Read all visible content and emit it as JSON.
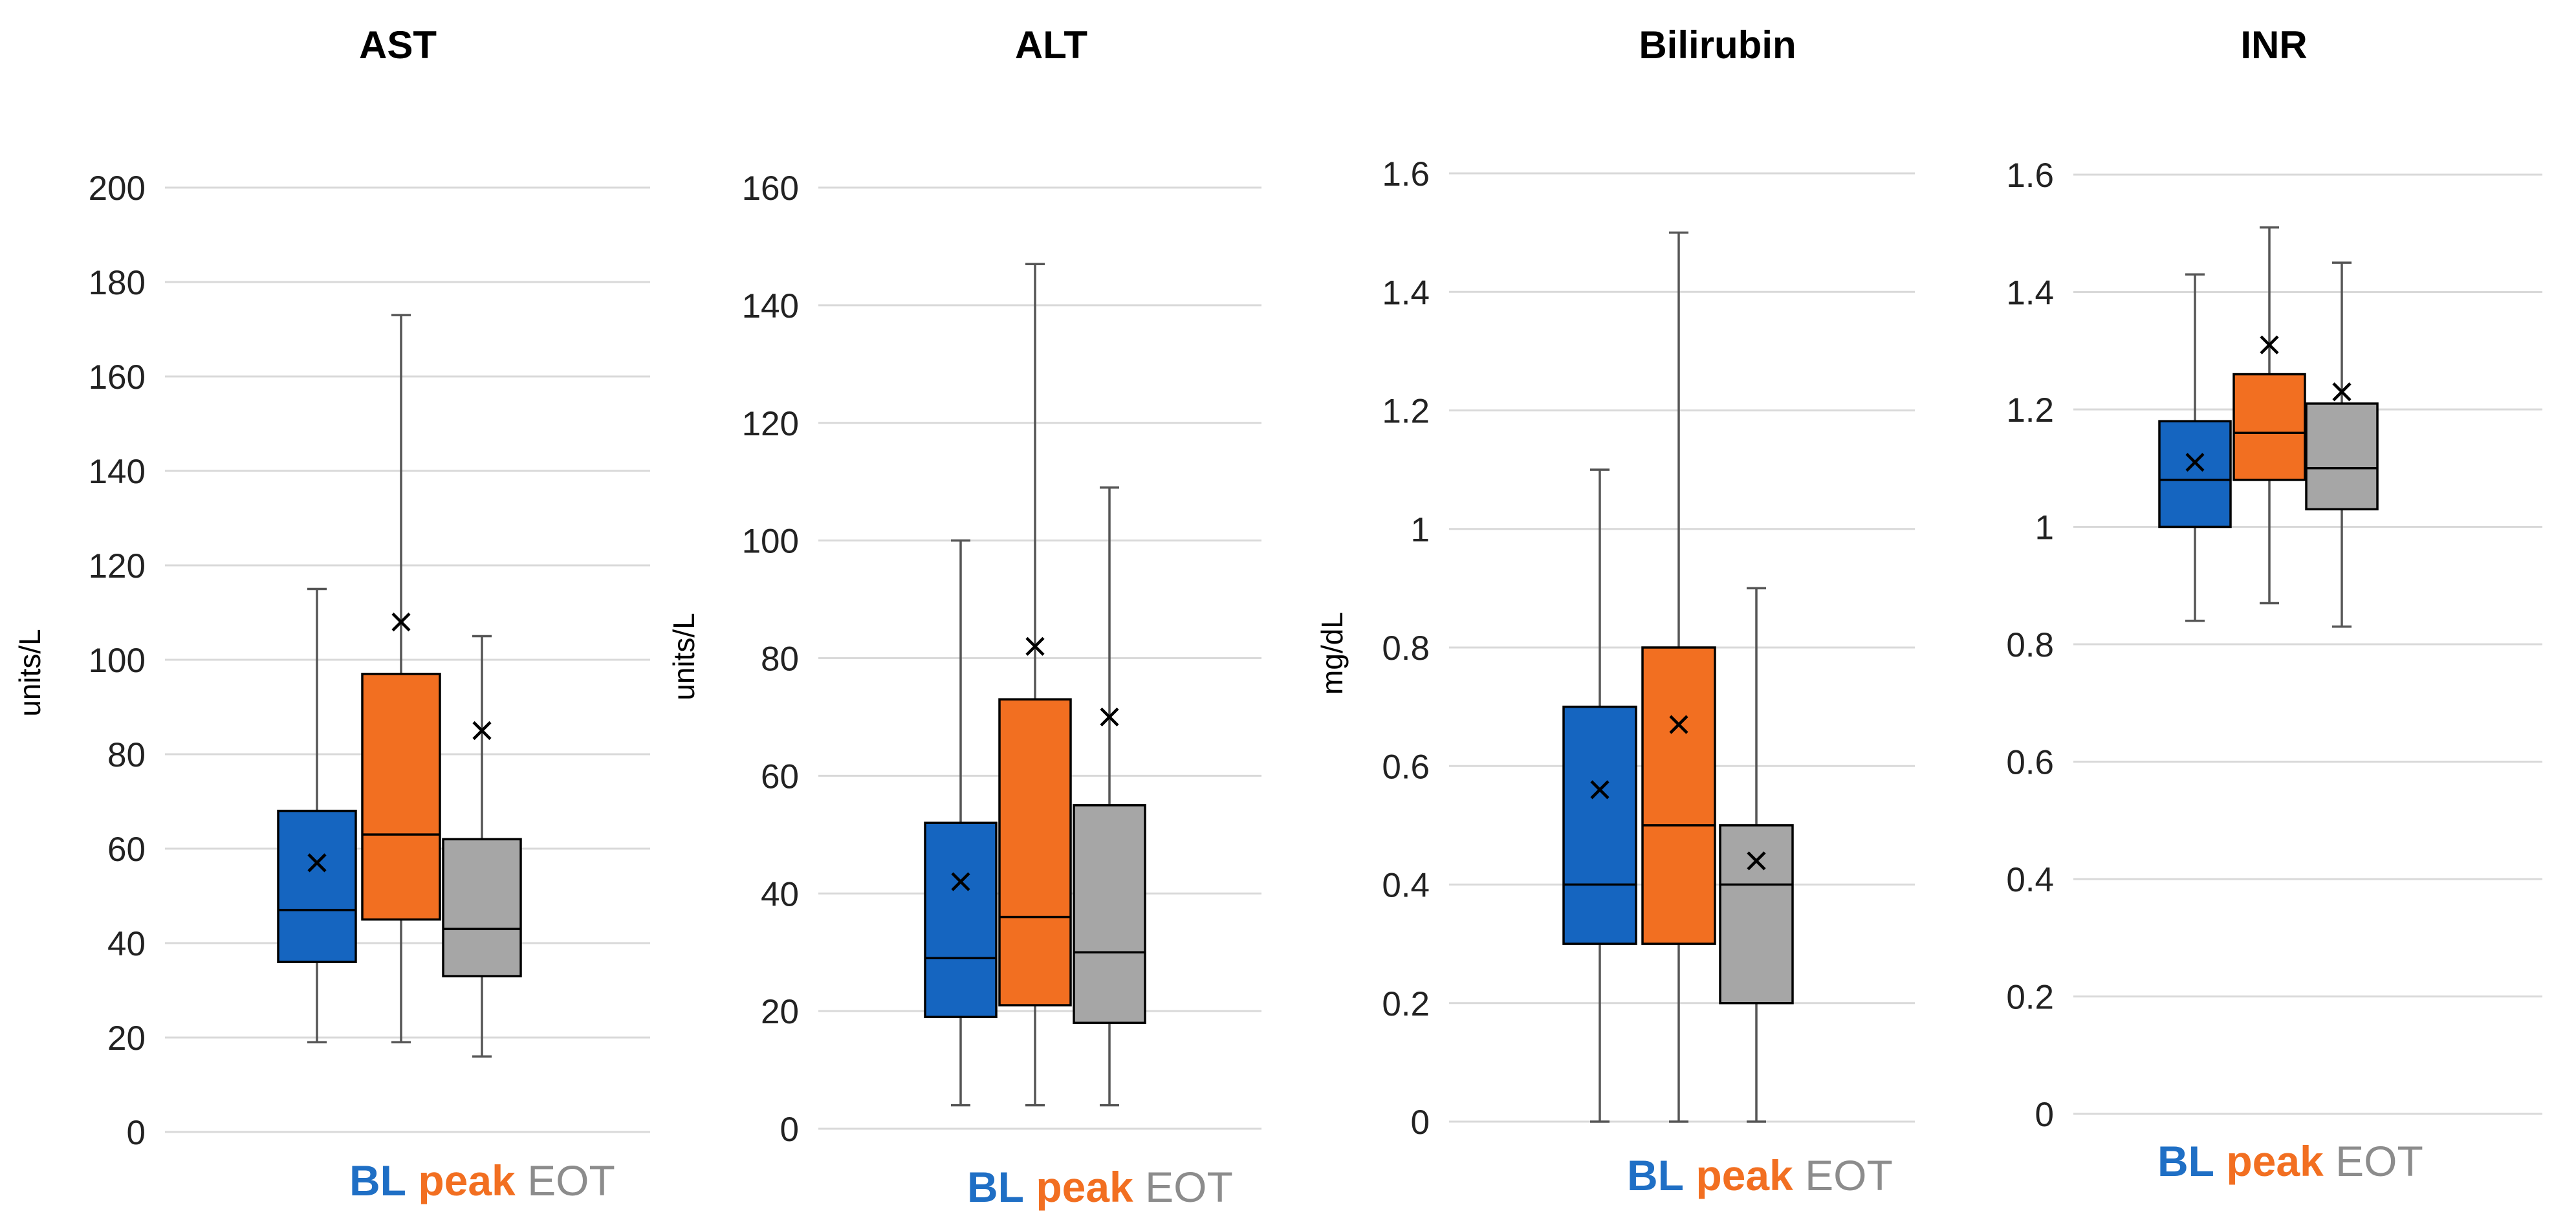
{
  "colors": {
    "BL": "#1565c0",
    "peak": "#f26f21",
    "EOT": "#a6a6a6"
  },
  "chart_data": [
    {
      "type": "box",
      "title": "AST",
      "ylabel": "units/L",
      "ylim": [
        0,
        200
      ],
      "yticks": [
        "0",
        "20",
        "40",
        "60",
        "80",
        "100",
        "120",
        "140",
        "160",
        "180",
        "200"
      ],
      "categories": [
        "BL",
        "peak",
        "EOT"
      ],
      "series": [
        {
          "name": "BL",
          "min": 19,
          "q1": 36,
          "median": 47,
          "q3": 68,
          "max": 115,
          "mean": 57
        },
        {
          "name": "peak",
          "min": 19,
          "q1": 45,
          "median": 63,
          "q3": 97,
          "max": 173,
          "mean": 108
        },
        {
          "name": "EOT",
          "min": 16,
          "q1": 33,
          "median": 43,
          "q3": 62,
          "max": 105,
          "mean": 85
        }
      ]
    },
    {
      "type": "box",
      "title": "ALT",
      "ylabel": "units/L",
      "ylim": [
        0,
        160
      ],
      "yticks": [
        "0",
        "20",
        "40",
        "60",
        "80",
        "100",
        "120",
        "140",
        "160"
      ],
      "categories": [
        "BL",
        "peak",
        "EOT"
      ],
      "series": [
        {
          "name": "BL",
          "min": 4,
          "q1": 19,
          "median": 29,
          "q3": 52,
          "max": 100,
          "mean": 42
        },
        {
          "name": "peak",
          "min": 4,
          "q1": 21,
          "median": 36,
          "q3": 73,
          "max": 147,
          "mean": 82
        },
        {
          "name": "EOT",
          "min": 4,
          "q1": 18,
          "median": 30,
          "q3": 55,
          "max": 109,
          "mean": 70
        }
      ]
    },
    {
      "type": "box",
      "title": "Bilirubin",
      "ylabel": "mg/dL",
      "ylim": [
        0,
        1.6
      ],
      "yticks": [
        "0",
        "0.2",
        "0.4",
        "0.6",
        "0.8",
        "1",
        "1.2",
        "1.4",
        "1.6"
      ],
      "categories": [
        "BL",
        "peak",
        "EOT"
      ],
      "series": [
        {
          "name": "BL",
          "min": 0,
          "q1": 0.3,
          "median": 0.4,
          "q3": 0.7,
          "max": 1.1,
          "mean": 0.56
        },
        {
          "name": "peak",
          "min": 0,
          "q1": 0.3,
          "median": 0.5,
          "q3": 0.8,
          "max": 1.5,
          "mean": 0.67
        },
        {
          "name": "EOT",
          "min": 0,
          "q1": 0.2,
          "median": 0.4,
          "q3": 0.5,
          "max": 0.9,
          "mean": 0.44
        }
      ]
    },
    {
      "type": "box",
      "title": "INR",
      "ylabel": "",
      "ylim": [
        0,
        1.6
      ],
      "yticks": [
        "0",
        "0.2",
        "0.4",
        "0.6",
        "0.8",
        "1",
        "1.2",
        "1.4",
        "1.6"
      ],
      "categories": [
        "BL",
        "peak",
        "EOT"
      ],
      "series": [
        {
          "name": "BL",
          "min": 0.84,
          "q1": 1.0,
          "median": 1.08,
          "q3": 1.18,
          "max": 1.43,
          "mean": 1.11
        },
        {
          "name": "peak",
          "min": 0.87,
          "q1": 1.08,
          "median": 1.16,
          "q3": 1.26,
          "max": 1.51,
          "mean": 1.31
        },
        {
          "name": "EOT",
          "min": 0.83,
          "q1": 1.03,
          "median": 1.1,
          "q3": 1.21,
          "max": 1.45,
          "mean": 1.23
        }
      ]
    }
  ]
}
